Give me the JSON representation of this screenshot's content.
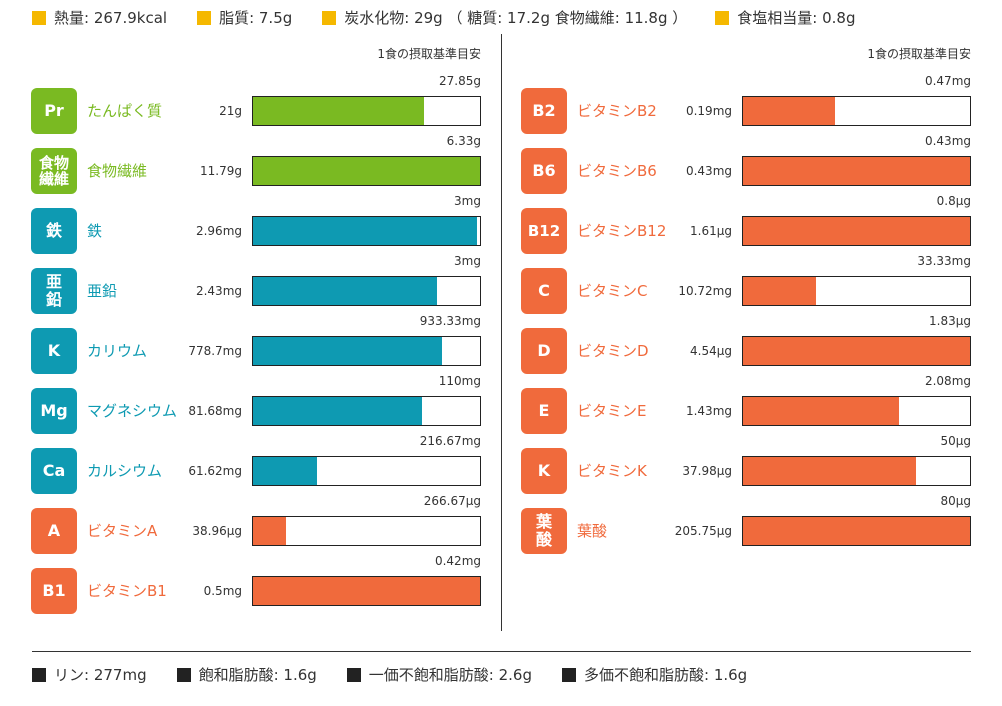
{
  "summary": {
    "energy": "熱量: 267.9kcal",
    "fat": "脂質: 7.5g",
    "carbs": "炭水化物: 29g （ 糖質: 17.2g  食物繊維: 11.8g ）",
    "salt": "食塩相当量: 0.8g"
  },
  "column_header": "1食の摂取基準目安",
  "left_items": [
    {
      "badge": "Pr",
      "name": "たんぱく質",
      "amount": "21g",
      "standard": "27.85g",
      "ratio": 0.754,
      "color": "green"
    },
    {
      "badge": "食物繊維",
      "name": "食物繊維",
      "amount": "11.79g",
      "standard": "6.33g",
      "ratio": 1.0,
      "color": "green"
    },
    {
      "badge": "鉄",
      "name": "鉄",
      "amount": "2.96mg",
      "standard": "3mg",
      "ratio": 0.987,
      "color": "teal"
    },
    {
      "badge": "亜鉛",
      "name": "亜鉛",
      "amount": "2.43mg",
      "standard": "3mg",
      "ratio": 0.81,
      "color": "teal"
    },
    {
      "badge": "K",
      "name": "カリウム",
      "amount": "778.7mg",
      "standard": "933.33mg",
      "ratio": 0.834,
      "color": "teal"
    },
    {
      "badge": "Mg",
      "name": "マグネシウム",
      "amount": "81.68mg",
      "standard": "110mg",
      "ratio": 0.743,
      "color": "teal"
    },
    {
      "badge": "Ca",
      "name": "カルシウム",
      "amount": "61.62mg",
      "standard": "216.67mg",
      "ratio": 0.284,
      "color": "teal"
    },
    {
      "badge": "A",
      "name": "ビタミンA",
      "amount": "38.96µg",
      "standard": "266.67µg",
      "ratio": 0.146,
      "color": "orange"
    },
    {
      "badge": "B1",
      "name": "ビタミンB1",
      "amount": "0.5mg",
      "standard": "0.42mg",
      "ratio": 1.0,
      "color": "orange"
    }
  ],
  "right_items": [
    {
      "badge": "B2",
      "name": "ビタミンB2",
      "amount": "0.19mg",
      "standard": "0.47mg",
      "ratio": 0.404,
      "color": "orange"
    },
    {
      "badge": "B6",
      "name": "ビタミンB6",
      "amount": "0.43mg",
      "standard": "0.43mg",
      "ratio": 1.0,
      "color": "orange"
    },
    {
      "badge": "B12",
      "name": "ビタミンB12",
      "amount": "1.61µg",
      "standard": "0.8µg",
      "ratio": 1.0,
      "color": "orange"
    },
    {
      "badge": "C",
      "name": "ビタミンC",
      "amount": "10.72mg",
      "standard": "33.33mg",
      "ratio": 0.322,
      "color": "orange"
    },
    {
      "badge": "D",
      "name": "ビタミンD",
      "amount": "4.54µg",
      "standard": "1.83µg",
      "ratio": 1.0,
      "color": "orange"
    },
    {
      "badge": "E",
      "name": "ビタミンE",
      "amount": "1.43mg",
      "standard": "2.08mg",
      "ratio": 0.688,
      "color": "orange"
    },
    {
      "badge": "K",
      "name": "ビタミンK",
      "amount": "37.98µg",
      "standard": "50µg",
      "ratio": 0.76,
      "color": "orange"
    },
    {
      "badge": "葉酸",
      "name": "葉酸",
      "amount": "205.75µg",
      "standard": "80µg",
      "ratio": 1.0,
      "color": "orange"
    }
  ],
  "bottom": {
    "phosphorus": "リン: 277mg",
    "saturated": "飽和脂肪酸: 1.6g",
    "mono": "一価不飽和脂肪酸: 2.6g",
    "poly": "多価不飽和脂肪酸: 1.6g"
  },
  "colors": {
    "green": "#7aba22",
    "teal": "#0e9ab2",
    "orange": "#f06a3c",
    "yellow": "#f5b800"
  }
}
